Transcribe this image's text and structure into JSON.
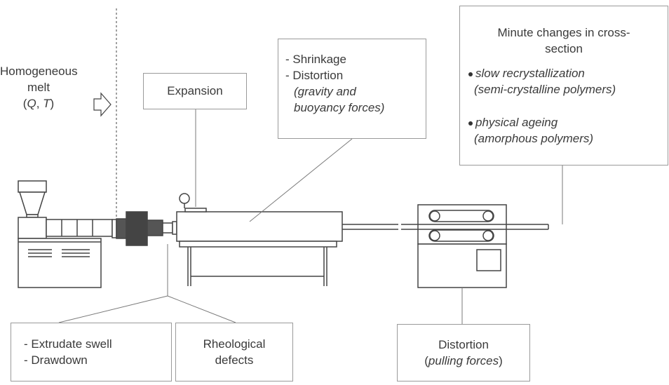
{
  "input": {
    "line1": "Homogeneous",
    "line2": "melt",
    "line3_prefix": "(",
    "q": "Q",
    "sep": ", ",
    "t": "T",
    "line3_suffix": ")"
  },
  "expansion": {
    "label": "Expansion"
  },
  "cooling": {
    "item1": "- Shrinkage",
    "item2": "- Distortion",
    "item2_detail_line1": "(gravity and",
    "item2_detail_line2": "buoyancy forces)"
  },
  "postprocess": {
    "title_line1": "Minute changes in cross-",
    "title_line2": "section",
    "bullet1_line1": "slow recrystallization",
    "bullet1_line2": "(semi-crystalline polymers)",
    "bullet2_line1": "physical ageing",
    "bullet2_line2": "(amorphous polymers)"
  },
  "die_exit": {
    "item1": "- Extrudate swell",
    "item2": "- Drawdown"
  },
  "rheology": {
    "line1": "Rheological",
    "line2": "defects"
  },
  "puller": {
    "line1": "Distortion",
    "line2_open": "(",
    "line2_italic": "pulling forces",
    "line2_close": ")"
  }
}
